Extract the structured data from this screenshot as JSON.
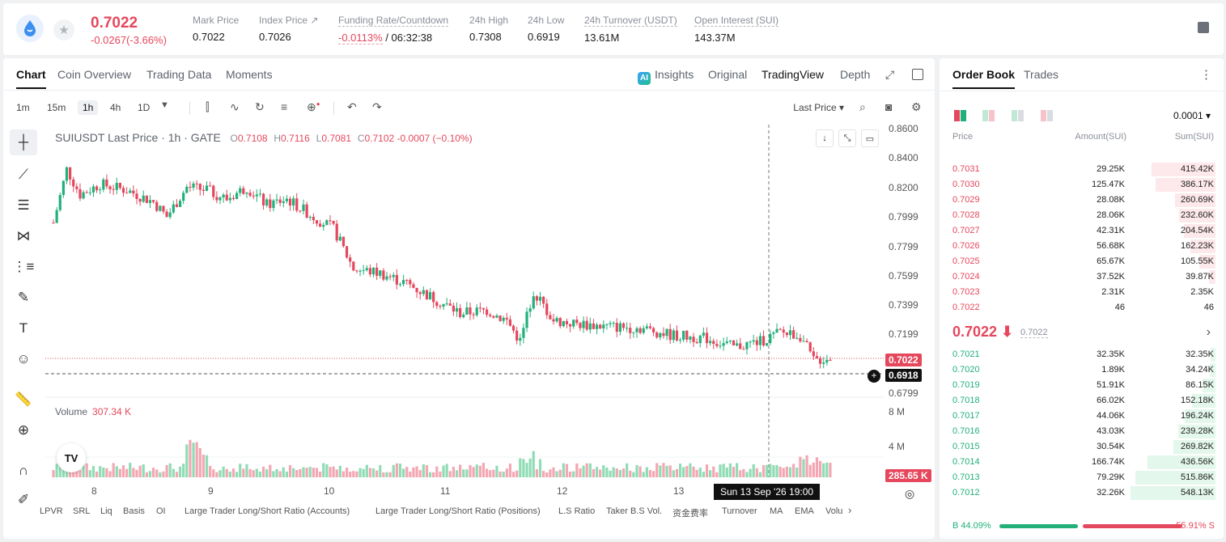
{
  "header": {
    "price": "0.7022",
    "change": "-0.0267(-3.66%)",
    "stats": [
      {
        "label": "Mark Price",
        "value": "0.7022"
      },
      {
        "label": "Index Price ↗",
        "value": "0.7026"
      },
      {
        "label": "Funding Rate/Countdown",
        "value_neg": "-0.0113%",
        "value": "/ 06:32:38"
      },
      {
        "label": "24h High",
        "value": "0.7308"
      },
      {
        "label": "24h Low",
        "value": "0.6919"
      },
      {
        "label": "24h Turnover (USDT)",
        "value": "13.61M"
      },
      {
        "label": "Open Interest (SUI)",
        "value": "143.37M"
      }
    ]
  },
  "chart_tabs": [
    "Chart",
    "Coin Overview",
    "Trading Data",
    "Moments"
  ],
  "view_tabs": [
    "Insights",
    "Original",
    "TradingView",
    "Depth"
  ],
  "ai_badge": "AI",
  "timeframes": [
    "1m",
    "15m",
    "1h",
    "4h",
    "1D"
  ],
  "last_price_select": "Last Price ▾",
  "legend": {
    "symbol": "SUIUSDT Last Price · 1h · GATE",
    "o_k": "O",
    "o": "0.7108",
    "h_k": "H",
    "h": "0.7116",
    "l_k": "L",
    "l": "0.7081",
    "c_k": "C",
    "c": "0.7102 -0.0007 (−0.10%)"
  },
  "volume_legend": {
    "label": "Volume",
    "value": "307.34 K"
  },
  "tv_logo": "TV",
  "chart_data": {
    "type": "candlestick",
    "price_axis": [
      "0.8600",
      "0.8400",
      "0.8200",
      "0.7999",
      "0.7799",
      "0.7599",
      "0.7399",
      "0.7199",
      "0.6799"
    ],
    "volume_axis": [
      "8 M",
      "4 M"
    ],
    "x_ticks": [
      "8",
      "9",
      "10",
      "11",
      "12",
      "13"
    ],
    "last_price_label": "0.7022",
    "crosshair_price_label": "0.6918",
    "volume_last_label": "285.65 K",
    "crosshair_time": "Sun 13 Sep '26   19:00"
  },
  "bottom_indicators": [
    "LPVR",
    "SRL",
    "Liq",
    "Basis",
    "OI",
    "Large Trader Long/Short Ratio (Accounts)",
    "Large Trader Long/Short Ratio (Positions)",
    "L.S Ratio",
    "Taker B.S Vol.",
    "资金费率",
    "Turnover",
    "MA",
    "EMA",
    "Volu"
  ],
  "order_book": {
    "tabs": [
      "Order Book",
      "Trades"
    ],
    "precision": "0.0001 ▾",
    "headers": [
      "Price",
      "Amount(SUI)",
      "Sum(SUI)"
    ],
    "asks": [
      {
        "price": "0.7031",
        "amount": "29.25K",
        "sum": "415.42K",
        "depth": 0.757
      },
      {
        "price": "0.7030",
        "amount": "125.47K",
        "sum": "386.17K",
        "depth": 0.704
      },
      {
        "price": "0.7029",
        "amount": "28.08K",
        "sum": "260.69K",
        "depth": 0.475
      },
      {
        "price": "0.7028",
        "amount": "28.06K",
        "sum": "232.60K",
        "depth": 0.424
      },
      {
        "price": "0.7027",
        "amount": "42.31K",
        "sum": "204.54K",
        "depth": 0.373
      },
      {
        "price": "0.7026",
        "amount": "56.68K",
        "sum": "162.23K",
        "depth": 0.296
      },
      {
        "price": "0.7025",
        "amount": "65.67K",
        "sum": "105.55K",
        "depth": 0.192
      },
      {
        "price": "0.7024",
        "amount": "37.52K",
        "sum": "39.87K",
        "depth": 0.073
      },
      {
        "price": "0.7023",
        "amount": "2.31K",
        "sum": "2.35K",
        "depth": 0.004
      },
      {
        "price": "0.7022",
        "amount": "46",
        "sum": "46",
        "depth": 0.0
      }
    ],
    "mid_price": "0.7022 ⬇",
    "mid_sub": "0.7022",
    "bids": [
      {
        "price": "0.7021",
        "amount": "32.35K",
        "sum": "32.35K",
        "depth": 0.059
      },
      {
        "price": "0.7020",
        "amount": "1.89K",
        "sum": "34.24K",
        "depth": 0.062
      },
      {
        "price": "0.7019",
        "amount": "51.91K",
        "sum": "86.15K",
        "depth": 0.157
      },
      {
        "price": "0.7018",
        "amount": "66.02K",
        "sum": "152.18K",
        "depth": 0.277
      },
      {
        "price": "0.7017",
        "amount": "44.06K",
        "sum": "196.24K",
        "depth": 0.358
      },
      {
        "price": "0.7016",
        "amount": "43.03K",
        "sum": "239.28K",
        "depth": 0.436
      },
      {
        "price": "0.7015",
        "amount": "30.54K",
        "sum": "269.82K",
        "depth": 0.492
      },
      {
        "price": "0.7014",
        "amount": "166.74K",
        "sum": "436.56K",
        "depth": 0.796
      },
      {
        "price": "0.7013",
        "amount": "79.29K",
        "sum": "515.86K",
        "depth": 0.941
      },
      {
        "price": "0.7012",
        "amount": "32.26K",
        "sum": "548.13K",
        "depth": 1.0
      }
    ],
    "buy_ratio": "B 44.09%",
    "sell_ratio": "55.91% S",
    "buy_fraction": 0.4409
  },
  "colors": {
    "up": "#21b07a",
    "down": "#e5475c",
    "up_vol": "#8fdcb5",
    "down_vol": "#f4a7b2"
  }
}
